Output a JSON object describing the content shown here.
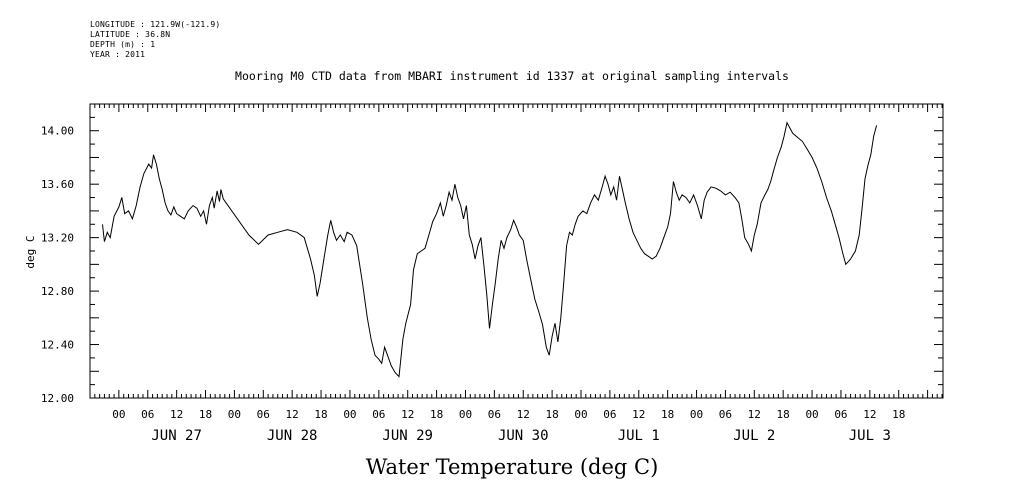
{
  "header": {
    "meta_lines": [
      "LONGITUDE : 121.9W(-121.9)",
      "LATITUDE : 36.8N",
      "DEPTH (m) : 1",
      "YEAR : 2011"
    ]
  },
  "chart_data": {
    "type": "line",
    "title": "Mooring M0 CTD data from MBARI instrument id 1337 at original sampling intervals",
    "xlabel": "Water Temperature (deg C)",
    "ylabel": "deg C",
    "ylim": [
      12.0,
      14.2
    ],
    "xlim_hours": [
      -18,
      492
    ],
    "y_ticks": [
      "12.00",
      "12.40",
      "12.80",
      "13.20",
      "13.60",
      "14.00"
    ],
    "y_tick_values": [
      12.0,
      12.4,
      12.8,
      13.2,
      13.6,
      14.0
    ],
    "x_hour_ticks": [
      "00",
      "06",
      "12",
      "18",
      "00",
      "06",
      "12",
      "18",
      "00",
      "06",
      "12",
      "18",
      "00",
      "06",
      "12",
      "18",
      "00",
      "06",
      "12",
      "18",
      "00",
      "06",
      "12",
      "18",
      "00",
      "06",
      "12",
      "18"
    ],
    "x_hour_tick_values": [
      0,
      6,
      12,
      18,
      24,
      30,
      36,
      42,
      48,
      54,
      60,
      66,
      72,
      78,
      84,
      90,
      96,
      102,
      108,
      114,
      120,
      126,
      132,
      138,
      144,
      150,
      156,
      162
    ],
    "day_labels": [
      "JUN 27",
      "JUN 28",
      "JUN 29",
      "JUN 30",
      "JUL  1",
      "JUL  2",
      "JUL  3"
    ],
    "day_label_values": [
      12,
      36,
      60,
      84,
      108,
      132,
      156
    ],
    "series": [
      {
        "color": "#000000",
        "points": [
          [
            -3.4,
            13.3
          ],
          [
            -3,
            13.17
          ],
          [
            -2.4,
            13.24
          ],
          [
            -1.8,
            13.2
          ],
          [
            -1,
            13.36
          ],
          [
            0,
            13.43
          ],
          [
            0.6,
            13.5
          ],
          [
            1.2,
            13.38
          ],
          [
            2,
            13.4
          ],
          [
            2.8,
            13.34
          ],
          [
            3.6,
            13.44
          ],
          [
            4.4,
            13.58
          ],
          [
            5.2,
            13.68
          ],
          [
            6.2,
            13.75
          ],
          [
            6.8,
            13.72
          ],
          [
            7.2,
            13.82
          ],
          [
            7.8,
            13.75
          ],
          [
            8.4,
            13.64
          ],
          [
            9,
            13.56
          ],
          [
            9.6,
            13.46
          ],
          [
            10.2,
            13.4
          ],
          [
            10.8,
            13.37
          ],
          [
            11.4,
            13.43
          ],
          [
            12,
            13.38
          ],
          [
            12.8,
            13.36
          ],
          [
            13.6,
            13.34
          ],
          [
            14.4,
            13.4
          ],
          [
            15.4,
            13.44
          ],
          [
            16.2,
            13.42
          ],
          [
            17,
            13.36
          ],
          [
            17.6,
            13.4
          ],
          [
            18.2,
            13.3
          ],
          [
            18.8,
            13.44
          ],
          [
            19.4,
            13.5
          ],
          [
            19.8,
            13.42
          ],
          [
            20.4,
            13.55
          ],
          [
            20.9,
            13.47
          ],
          [
            21.2,
            13.56
          ],
          [
            21.7,
            13.49
          ],
          [
            27,
            13.22
          ],
          [
            29,
            13.15
          ],
          [
            31,
            13.22
          ],
          [
            33,
            13.24
          ],
          [
            35,
            13.26
          ],
          [
            37,
            13.24
          ],
          [
            38.5,
            13.2
          ],
          [
            39.8,
            13.04
          ],
          [
            40.6,
            12.92
          ],
          [
            41.2,
            12.76
          ],
          [
            41.8,
            12.86
          ],
          [
            42.6,
            13.04
          ],
          [
            43.4,
            13.22
          ],
          [
            44,
            13.33
          ],
          [
            44.6,
            13.24
          ],
          [
            45.2,
            13.18
          ],
          [
            46,
            13.22
          ],
          [
            46.8,
            13.17
          ],
          [
            47.4,
            13.24
          ],
          [
            48.4,
            13.22
          ],
          [
            49.4,
            13.14
          ],
          [
            50.6,
            12.86
          ],
          [
            51.6,
            12.6
          ],
          [
            52.4,
            12.44
          ],
          [
            53.2,
            12.32
          ],
          [
            54,
            12.29
          ],
          [
            54.6,
            12.26
          ],
          [
            55.2,
            12.38
          ],
          [
            55.8,
            12.32
          ],
          [
            56.6,
            12.24
          ],
          [
            57.4,
            12.19
          ],
          [
            58.2,
            12.16
          ],
          [
            59,
            12.44
          ],
          [
            59.6,
            12.56
          ],
          [
            60.6,
            12.7
          ],
          [
            61.2,
            12.96
          ],
          [
            62,
            13.08
          ],
          [
            62.8,
            13.1
          ],
          [
            63.6,
            13.12
          ],
          [
            64.4,
            13.22
          ],
          [
            65.2,
            13.32
          ],
          [
            66,
            13.38
          ],
          [
            66.8,
            13.46
          ],
          [
            67.4,
            13.36
          ],
          [
            68,
            13.44
          ],
          [
            68.6,
            13.54
          ],
          [
            69.2,
            13.48
          ],
          [
            69.8,
            13.6
          ],
          [
            70.4,
            13.5
          ],
          [
            71,
            13.44
          ],
          [
            71.6,
            13.34
          ],
          [
            72.2,
            13.44
          ],
          [
            72.8,
            13.22
          ],
          [
            73.4,
            13.15
          ],
          [
            74,
            13.04
          ],
          [
            74.6,
            13.14
          ],
          [
            75.2,
            13.2
          ],
          [
            75.8,
            13.0
          ],
          [
            76.4,
            12.78
          ],
          [
            77,
            12.52
          ],
          [
            77.6,
            12.7
          ],
          [
            78.2,
            12.86
          ],
          [
            78.8,
            13.04
          ],
          [
            79.4,
            13.18
          ],
          [
            80,
            13.12
          ],
          [
            80.6,
            13.2
          ],
          [
            81.4,
            13.26
          ],
          [
            82,
            13.33
          ],
          [
            82.6,
            13.28
          ],
          [
            83.2,
            13.22
          ],
          [
            84,
            13.18
          ],
          [
            84.8,
            13.02
          ],
          [
            85.6,
            12.88
          ],
          [
            86.4,
            12.74
          ],
          [
            87.2,
            12.65
          ],
          [
            88,
            12.55
          ],
          [
            88.8,
            12.38
          ],
          [
            89.4,
            12.32
          ],
          [
            90,
            12.46
          ],
          [
            90.6,
            12.56
          ],
          [
            91.2,
            12.42
          ],
          [
            91.8,
            12.6
          ],
          [
            92.4,
            12.86
          ],
          [
            93,
            13.14
          ],
          [
            93.6,
            13.24
          ],
          [
            94.2,
            13.22
          ],
          [
            94.8,
            13.3
          ],
          [
            95.4,
            13.36
          ],
          [
            96.4,
            13.4
          ],
          [
            97.2,
            13.38
          ],
          [
            98,
            13.46
          ],
          [
            98.8,
            13.52
          ],
          [
            99.6,
            13.48
          ],
          [
            100.4,
            13.58
          ],
          [
            101,
            13.66
          ],
          [
            101.6,
            13.6
          ],
          [
            102.2,
            13.52
          ],
          [
            102.8,
            13.58
          ],
          [
            103.4,
            13.48
          ],
          [
            104,
            13.66
          ],
          [
            104.6,
            13.56
          ],
          [
            105.2,
            13.46
          ],
          [
            106,
            13.34
          ],
          [
            106.8,
            13.24
          ],
          [
            107.6,
            13.18
          ],
          [
            108.4,
            13.12
          ],
          [
            109.2,
            13.08
          ],
          [
            110,
            13.06
          ],
          [
            110.8,
            13.04
          ],
          [
            111.6,
            13.06
          ],
          [
            112.4,
            13.12
          ],
          [
            113.2,
            13.2
          ],
          [
            114,
            13.28
          ],
          [
            114.6,
            13.38
          ],
          [
            115.2,
            13.62
          ],
          [
            115.8,
            13.54
          ],
          [
            116.4,
            13.48
          ],
          [
            117,
            13.52
          ],
          [
            117.8,
            13.5
          ],
          [
            118.6,
            13.46
          ],
          [
            119.4,
            13.52
          ],
          [
            120.2,
            13.44
          ],
          [
            121,
            13.34
          ],
          [
            121.6,
            13.48
          ],
          [
            122.2,
            13.54
          ],
          [
            123,
            13.58
          ],
          [
            124,
            13.57
          ],
          [
            125,
            13.55
          ],
          [
            126,
            13.52
          ],
          [
            127,
            13.54
          ],
          [
            128,
            13.5
          ],
          [
            128.8,
            13.46
          ],
          [
            129.4,
            13.34
          ],
          [
            130,
            13.2
          ],
          [
            130.8,
            13.15
          ],
          [
            131.4,
            13.1
          ],
          [
            132,
            13.22
          ],
          [
            132.6,
            13.3
          ],
          [
            133.4,
            13.46
          ],
          [
            134.2,
            13.52
          ],
          [
            134.8,
            13.56
          ],
          [
            135.4,
            13.62
          ],
          [
            136,
            13.7
          ],
          [
            136.8,
            13.8
          ],
          [
            137.6,
            13.88
          ],
          [
            138.2,
            13.96
          ],
          [
            138.8,
            14.06
          ],
          [
            139.4,
            14.02
          ],
          [
            140,
            13.98
          ],
          [
            141,
            13.95
          ],
          [
            142,
            13.92
          ],
          [
            143,
            13.86
          ],
          [
            144,
            13.8
          ],
          [
            145,
            13.72
          ],
          [
            146,
            13.62
          ],
          [
            147,
            13.5
          ],
          [
            148,
            13.4
          ],
          [
            148.8,
            13.3
          ],
          [
            149.6,
            13.2
          ],
          [
            150.4,
            13.08
          ],
          [
            151,
            13.0
          ],
          [
            152,
            13.04
          ],
          [
            153,
            13.1
          ],
          [
            153.8,
            13.22
          ],
          [
            154.4,
            13.42
          ],
          [
            155,
            13.64
          ],
          [
            155.6,
            13.74
          ],
          [
            156.2,
            13.82
          ],
          [
            156.8,
            13.96
          ],
          [
            157.4,
            14.04
          ]
        ]
      }
    ],
    "grid": false
  }
}
